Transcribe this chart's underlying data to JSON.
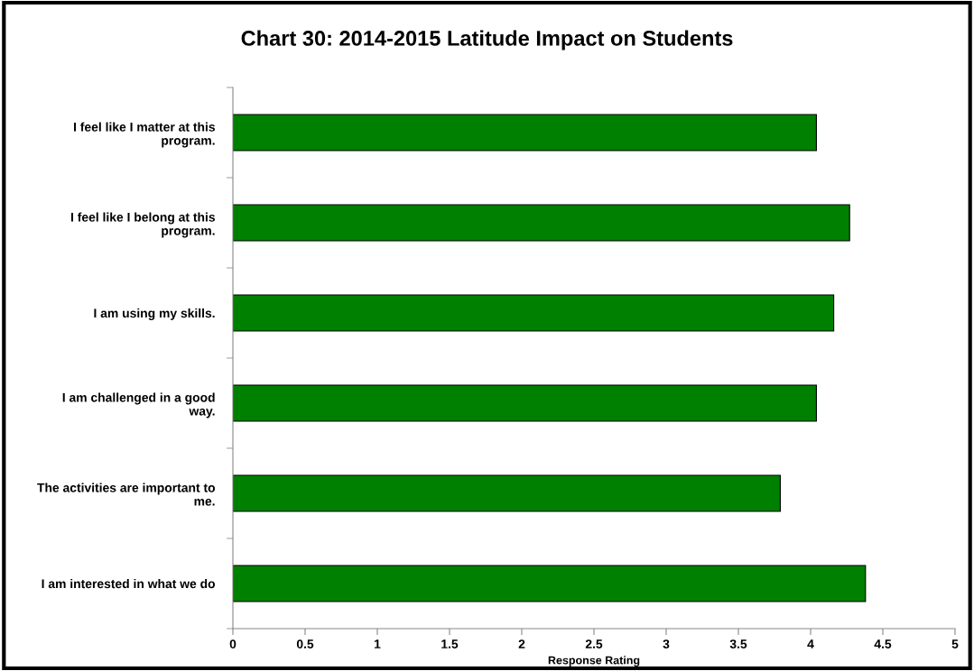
{
  "chart_data": {
    "type": "bar",
    "orientation": "horizontal",
    "title": "Chart 30: 2014-2015 Latitude Impact on Students",
    "xlabel": "Response Rating",
    "categories": [
      "I feel like I matter at this\nprogram.",
      "I feel like I belong at this\nprogram.",
      "I am using my skills.",
      "I am challenged in a good\nway.",
      "The activities are important to\nme.",
      "I am interested in what we do"
    ],
    "values": [
      4.04,
      4.27,
      4.16,
      4.04,
      3.79,
      4.38
    ],
    "color": "#008000",
    "xlim": [
      0,
      5
    ],
    "xticks": [
      0,
      0.5,
      1,
      1.5,
      2,
      2.5,
      3,
      3.5,
      4,
      4.5,
      5
    ],
    "grid": false
  }
}
